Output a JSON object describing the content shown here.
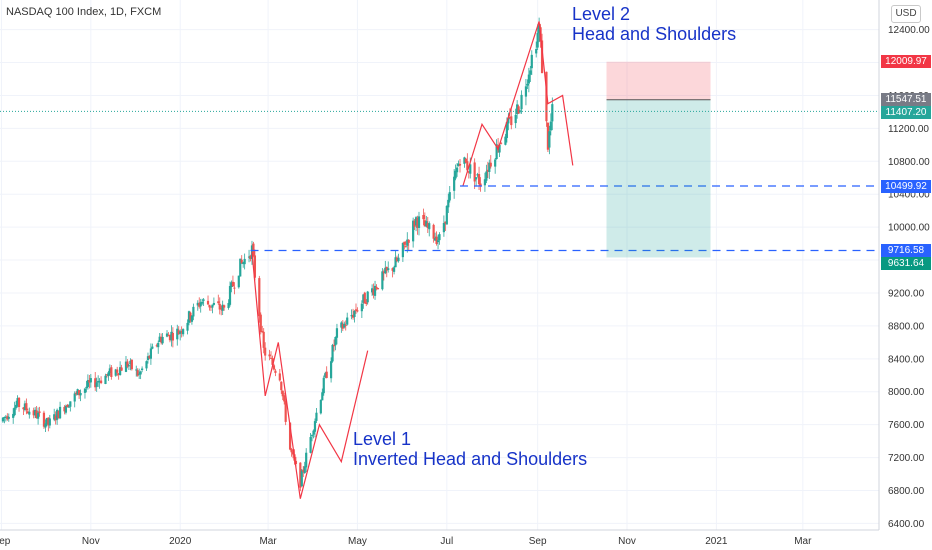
{
  "header": {
    "symbol": "NASDAQ 100 Index, 1D, FXCM",
    "currency": "USD"
  },
  "annotations": {
    "level2_line1": "Level 2",
    "level2_line2": "Head and Shoulders",
    "level1_line1": "Level 1",
    "level1_line2": "Inverted Head and Shoulders"
  },
  "price_tags": [
    {
      "label": "12009.97",
      "value": 12009.97,
      "color": "#f23645"
    },
    {
      "label": "11547.51",
      "value": 11547.51,
      "color": "#787b86"
    },
    {
      "label": "11407.20",
      "value": 11407.2,
      "color": "#26a69a"
    },
    {
      "label": "10499.92",
      "value": 10499.92,
      "color": "#2962ff"
    },
    {
      "label": "9716.58",
      "value": 9716.58,
      "color": "#2962ff"
    },
    {
      "label": "9631.64",
      "value": 9631.64,
      "color": "#089981"
    }
  ],
  "colors": {
    "up": "#26a69a",
    "down": "#ef5350",
    "pattern": "#f23645",
    "level_line": "#2962ff",
    "axis_text": "#333333"
  },
  "chart_data": {
    "type": "candlestick",
    "title": "NASDAQ 100 Index, 1D, FXCM",
    "y_ticks": [
      6400,
      6800,
      7200,
      7600,
      8000,
      8400,
      8800,
      9200,
      9600,
      10000,
      10400,
      10800,
      11200,
      11600,
      12000,
      12400
    ],
    "y_tick_labels": [
      "6400.00",
      "6800.00",
      "7200.00",
      "7600.00",
      "8000.00",
      "8400.00",
      "8800.00",
      "9200.00",
      "9600.00",
      "10000.00",
      "10400.00",
      "10800.00",
      "11200.00",
      "11600.00",
      "12000.00",
      "12400.00"
    ],
    "ylim": [
      6320,
      12760
    ],
    "x_ticks": [
      "2019-09-01",
      "2019-11-01",
      "2020-01-01",
      "2020-03-01",
      "2020-05-01",
      "2020-07-01",
      "2020-09-01",
      "2020-11-01",
      "2021-01-01",
      "2021-03-01"
    ],
    "x_tick_labels": [
      "Sep",
      "Nov",
      "2020",
      "Mar",
      "May",
      "Jul",
      "Sep",
      "Nov",
      "2021",
      "Mar"
    ],
    "xlim": [
      "2019-08-31",
      "2021-04-22"
    ],
    "grid": true,
    "price_path": [
      [
        "2019-08-31",
        7640
      ],
      [
        "2019-09-12",
        7850
      ],
      [
        "2019-09-25",
        7720
      ],
      [
        "2019-10-03",
        7600
      ],
      [
        "2019-10-15",
        7850
      ],
      [
        "2019-10-28",
        8050
      ],
      [
        "2019-11-12",
        8200
      ],
      [
        "2019-11-26",
        8340
      ],
      [
        "2019-12-04",
        8200
      ],
      [
        "2019-12-18",
        8650
      ],
      [
        "2019-12-31",
        8730
      ],
      [
        "2020-01-15",
        9100
      ],
      [
        "2020-01-31",
        9000
      ],
      [
        "2020-02-10",
        9500
      ],
      [
        "2020-02-19",
        9730
      ],
      [
        "2020-02-27",
        8500
      ],
      [
        "2020-03-09",
        8200
      ],
      [
        "2020-03-16",
        7300
      ],
      [
        "2020-03-23",
        6900
      ],
      [
        "2020-04-01",
        7600
      ],
      [
        "2020-04-08",
        8100
      ],
      [
        "2020-04-17",
        8700
      ],
      [
        "2020-04-30",
        9000
      ],
      [
        "2020-05-14",
        9300
      ],
      [
        "2020-05-29",
        9600
      ],
      [
        "2020-06-10",
        10100
      ],
      [
        "2020-06-26",
        9850
      ],
      [
        "2020-07-10",
        10850
      ],
      [
        "2020-07-24",
        10550
      ],
      [
        "2020-08-05",
        11000
      ],
      [
        "2020-08-20",
        11500
      ],
      [
        "2020-09-02",
        12420
      ],
      [
        "2020-09-08",
        11000
      ],
      [
        "2020-09-11",
        11400
      ]
    ],
    "pattern_lines": [
      {
        "name": "Inverted Head and Shoulders",
        "points": [
          [
            "2020-02-19",
            9700
          ],
          [
            "2020-02-28",
            7950
          ],
          [
            "2020-03-08",
            8600
          ],
          [
            "2020-03-23",
            6700
          ],
          [
            "2020-04-05",
            7600
          ],
          [
            "2020-04-20",
            7150
          ],
          [
            "2020-05-08",
            8500
          ]
        ]
      },
      {
        "name": "Head and Shoulders",
        "points": [
          [
            "2020-07-12",
            10500
          ],
          [
            "2020-07-25",
            11250
          ],
          [
            "2020-08-05",
            10950
          ],
          [
            "2020-09-02",
            12500
          ],
          [
            "2020-09-08",
            11500
          ],
          [
            "2020-09-18",
            11600
          ],
          [
            "2020-09-25",
            10750
          ]
        ]
      }
    ],
    "levels": [
      {
        "value": 10499.92,
        "from": "2020-07-10"
      },
      {
        "value": 9716.58,
        "from": "2020-02-18"
      }
    ],
    "position": {
      "entry": 11547.51,
      "stop": 12009.97,
      "target": 9631.64,
      "from": "2020-10-18",
      "to": "2020-12-28"
    },
    "last_price": 11407.2
  }
}
